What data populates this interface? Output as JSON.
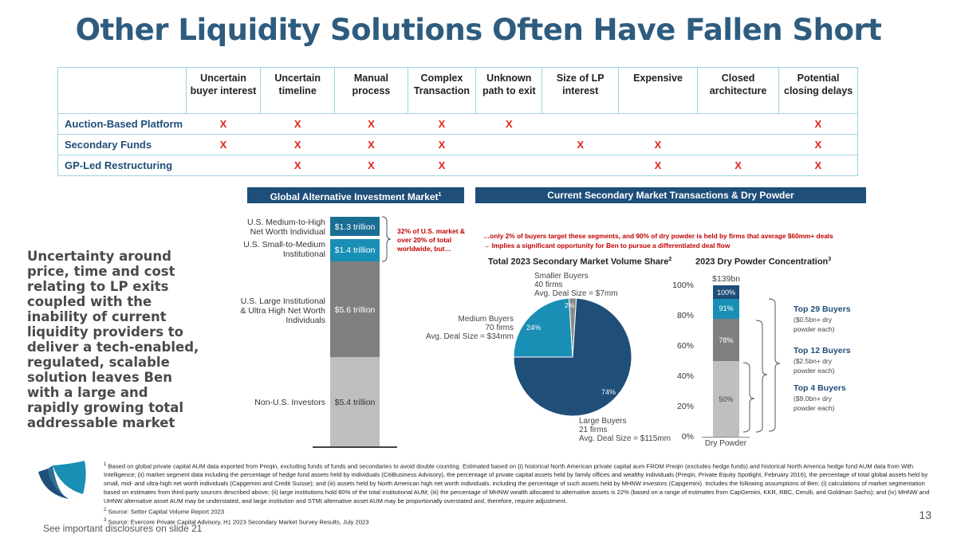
{
  "title": "Other Liquidity Solutions Often Have Fallen Short",
  "table": {
    "headers": [
      "",
      "Uncertain buyer interest",
      "Uncertain timeline",
      "Manual process",
      "Complex Transaction",
      "Unknown path to exit",
      "Size of LP interest",
      "Expensive",
      "Closed architecture",
      "Potential closing delays"
    ],
    "rows": [
      {
        "label": "Auction-Based Platform",
        "cells": [
          "X",
          "X",
          "X",
          "X",
          "X",
          "",
          "",
          "",
          "X"
        ]
      },
      {
        "label": "Secondary Funds",
        "cells": [
          "X",
          "X",
          "X",
          "X",
          "",
          "X",
          "X",
          "",
          "X"
        ]
      },
      {
        "label": "GP-Led Restructuring",
        "cells": [
          "",
          "X",
          "X",
          "X",
          "",
          "",
          "X",
          "X",
          "X"
        ]
      }
    ]
  },
  "left_panel": {
    "header": "Global Alternative Investment Market",
    "header_sup": "1",
    "segments": [
      {
        "label": "U.S. Medium-to-High Net Worth Individual",
        "value": "$1.3 trillion",
        "color": "#1a6e94"
      },
      {
        "label": "U.S. Small-to-Medium Institutional",
        "value": "$1.4 trillion",
        "color": "#1a8fb5"
      },
      {
        "label": "U.S. Large Institutional & Ultra High Net Worth Individuals",
        "value": "$5.6 trillion",
        "color": "#7f7f7f"
      },
      {
        "label": "Non-U.S. Investors",
        "value": "$5.4 trillion",
        "color": "#bfbfbf"
      }
    ],
    "callout": "32% of U.S. market & over 20% of total worldwide, but…"
  },
  "uncertainty_text": "Uncertainty around price, time and cost relating to LP exits coupled with the inability of current liquidity providers to deliver a tech-enabled, regulated, scalable solution leaves Ben with a large and rapidly growing total addressable market",
  "right_panel": {
    "header": "Current Secondary Market Transactions & Dry Powder",
    "note_line1": "…only 2% of buyers target these segments, and 90% of dry powder is held by firms that average $60mm+ deals",
    "note_line2": "→  Implies a significant opportunity for Ben to pursue a differentiated deal flow",
    "pie": {
      "title": "Total 2023 Secondary Market Volume Share",
      "title_sup": "2",
      "slices": [
        {
          "name": "Large Buyers",
          "firms": "21 firms",
          "deal": "Avg. Deal Size = $115mm",
          "pct": 74,
          "label": "74%",
          "color": "#1f4e79"
        },
        {
          "name": "Smaller Buyers",
          "firms": "40 firms",
          "deal": "Avg. Deal Size = $7mm",
          "pct": 2,
          "label": "2%",
          "color": "#8c8c8c"
        },
        {
          "name": "Medium Buyers",
          "firms": "70 firms",
          "deal": "Avg. Deal Size = $34mm",
          "pct": 24,
          "label": "24%",
          "color": "#1a8fb5"
        }
      ]
    },
    "dry": {
      "title": "2023 Dry Powder Concentration",
      "title_sup": "3",
      "total": "$139bn",
      "y_ticks": [
        "0%",
        "20%",
        "40%",
        "60%",
        "80%",
        "100%"
      ],
      "x_label": "Dry Powder",
      "segments": [
        {
          "label": "50%",
          "value": 50,
          "color": "#bfbfbf"
        },
        {
          "label": "78%",
          "value": 78,
          "color": "#7f7f7f"
        },
        {
          "label": "91%",
          "value": 91,
          "color": "#1a8fb5"
        },
        {
          "label": "100%",
          "value": 100,
          "color": "#1f4e79"
        }
      ],
      "brackets": [
        {
          "title": "Top 29 Buyers",
          "sub1": "($0.5bn+ dry",
          "sub2": "powder each)"
        },
        {
          "title": "Top 12 Buyers",
          "sub1": "($2.5bn+ dry",
          "sub2": "powder each)"
        },
        {
          "title": "Top 4 Buyers",
          "sub1": "($9.0bn+ dry",
          "sub2": "powder each)"
        }
      ]
    }
  },
  "footnotes": {
    "f1": "Based on global private capital AUM data exported from Preqin, excluding funds of funds and secondaries to avoid double counting. Estimated based on (i) historical North American private capital aum FROM Preqin (excludes hedge funds) and historical North America hedge fund AUM data from With Intelligence; (ii) market segment data including the percentage of hedge fund assets held by individuals (CitiBusiness Advisory), the percentage of private capital assets held by family offices and wealthy individuals (Preqin, Private Equity Spotlight, February 2016), the percentage of total global assets held by small, mid- and ultra-high net worth individuals (Capgemini and Credit Suisse); and (iii) assets held by North American high net worth individuals, including the percentage of such assets held by MHNW investors (Capgemini). Includes the following assumptions of Ben: (i) calculations of market segmentation based on estimates from third-party sources described above; (ii) large institutions hold 80% of the total institutional AUM; (iii) the percentage of MHNW wealth allocated to alternative assets is 22% (based on a range of estimates from CapGemini, KKR, RBC, Cerulli, and Goldman Sachs); and (iv) MHNW and UHNW alternative asset AUM may be understated, and large institution and STMI alternative asset AUM may be proportionally overstated and, therefore, require adjustment.",
    "f2": "Source: Setter Capital Volume Report 2023",
    "f3": "Source: Evercore Private Capital Advisory, H1 2023 Secondary Market Survey Results, July 2023"
  },
  "page_number": "13",
  "disclosure": "See important disclosures on slide 21"
}
